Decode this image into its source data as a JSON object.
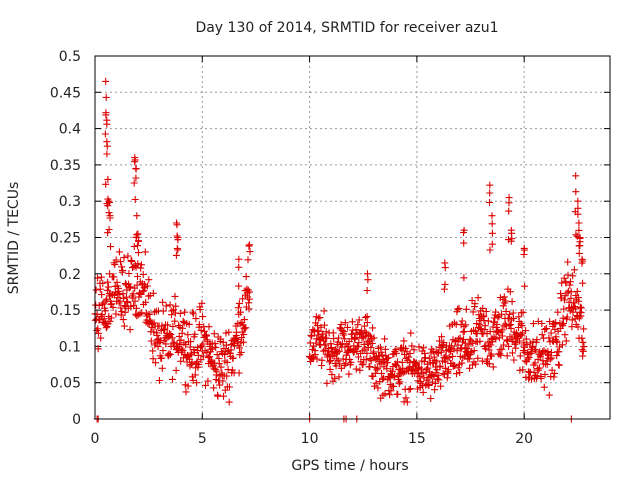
{
  "chart_data": {
    "type": "scatter",
    "title": "Day 130 of 2014, SRMTID for receiver azu1",
    "xlabel": "GPS time / hours",
    "ylabel": "SRMTID / TECUs",
    "xlim": [
      0,
      24
    ],
    "ylim": [
      0,
      0.5
    ],
    "x_ticks": [
      0,
      5,
      10,
      15,
      20
    ],
    "x_tick_labels": [
      "0",
      "5",
      "10",
      "15",
      "20"
    ],
    "y_ticks": [
      0,
      0.05,
      0.1,
      0.15,
      0.2,
      0.25,
      0.3,
      0.35,
      0.4,
      0.45,
      0.5
    ],
    "y_tick_labels": [
      "0",
      "0.05",
      "0.1",
      "0.15",
      "0.2",
      "0.25",
      "0.3",
      "0.35",
      "0.4",
      "0.45",
      "0.5"
    ],
    "grid": true,
    "marker": "+",
    "series": [
      {
        "name": "SRMTID",
        "color": "#dd0000",
        "segments": [
          {
            "start": 0.0,
            "end": 7.2,
            "level": [
              [
                0.0,
                0.14
              ],
              [
                0.5,
                0.15
              ],
              [
                1.0,
                0.19
              ],
              [
                1.6,
                0.17
              ],
              [
                2.0,
                0.2
              ],
              [
                2.5,
                0.15
              ],
              [
                3.0,
                0.1
              ],
              [
                3.5,
                0.11
              ],
              [
                4.0,
                0.12
              ],
              [
                4.5,
                0.09
              ],
              [
                5.0,
                0.11
              ],
              [
                5.5,
                0.08
              ],
              [
                6.0,
                0.07
              ],
              [
                6.5,
                0.1
              ],
              [
                7.0,
                0.15
              ],
              [
                7.2,
                0.17
              ]
            ],
            "spread": 0.045
          },
          {
            "start": 10.0,
            "end": 16.6,
            "level": [
              [
                10.0,
                0.1
              ],
              [
                10.5,
                0.11
              ],
              [
                11.0,
                0.09
              ],
              [
                11.5,
                0.1
              ],
              [
                12.0,
                0.1
              ],
              [
                12.5,
                0.11
              ],
              [
                13.0,
                0.08
              ],
              [
                13.5,
                0.07
              ],
              [
                14.0,
                0.065
              ],
              [
                14.5,
                0.07
              ],
              [
                15.0,
                0.07
              ],
              [
                15.5,
                0.06
              ],
              [
                16.0,
                0.07
              ],
              [
                16.6,
                0.09
              ]
            ],
            "spread": 0.035
          },
          {
            "start": 16.6,
            "end": 22.8,
            "level": [
              [
                16.6,
                0.09
              ],
              [
                17.0,
                0.1
              ],
              [
                17.5,
                0.1
              ],
              [
                18.0,
                0.12
              ],
              [
                18.5,
                0.11
              ],
              [
                19.0,
                0.13
              ],
              [
                19.5,
                0.13
              ],
              [
                20.0,
                0.1
              ],
              [
                20.5,
                0.08
              ],
              [
                21.0,
                0.09
              ],
              [
                21.5,
                0.1
              ],
              [
                22.0,
                0.17
              ],
              [
                22.5,
                0.15
              ],
              [
                22.8,
                0.1
              ]
            ],
            "spread": 0.045
          }
        ],
        "peaks": [
          {
            "x": 0.5,
            "y": 0.465
          },
          {
            "x": 0.52,
            "y": 0.443
          },
          {
            "x": 0.55,
            "y": 0.382
          },
          {
            "x": 0.6,
            "y": 0.33
          },
          {
            "x": 0.65,
            "y": 0.3
          },
          {
            "x": 0.7,
            "y": 0.28
          },
          {
            "x": 1.85,
            "y": 0.36
          },
          {
            "x": 1.9,
            "y": 0.345
          },
          {
            "x": 1.95,
            "y": 0.28
          },
          {
            "x": 2.0,
            "y": 0.255
          },
          {
            "x": 3.8,
            "y": 0.27
          },
          {
            "x": 3.85,
            "y": 0.25
          },
          {
            "x": 6.7,
            "y": 0.22
          },
          {
            "x": 7.2,
            "y": 0.24
          },
          {
            "x": 12.7,
            "y": 0.2
          },
          {
            "x": 16.3,
            "y": 0.215
          },
          {
            "x": 17.2,
            "y": 0.26
          },
          {
            "x": 18.4,
            "y": 0.322
          },
          {
            "x": 18.5,
            "y": 0.28
          },
          {
            "x": 19.3,
            "y": 0.305
          },
          {
            "x": 19.4,
            "y": 0.26
          },
          {
            "x": 20.0,
            "y": 0.235
          },
          {
            "x": 22.4,
            "y": 0.335
          },
          {
            "x": 22.5,
            "y": 0.3
          },
          {
            "x": 22.55,
            "y": 0.27
          },
          {
            "x": 22.6,
            "y": 0.25
          },
          {
            "x": 22.7,
            "y": 0.22
          }
        ],
        "zero_points": [
          0.1,
          0.15,
          10.0,
          11.6,
          11.7,
          12.2,
          22.2
        ]
      }
    ]
  }
}
